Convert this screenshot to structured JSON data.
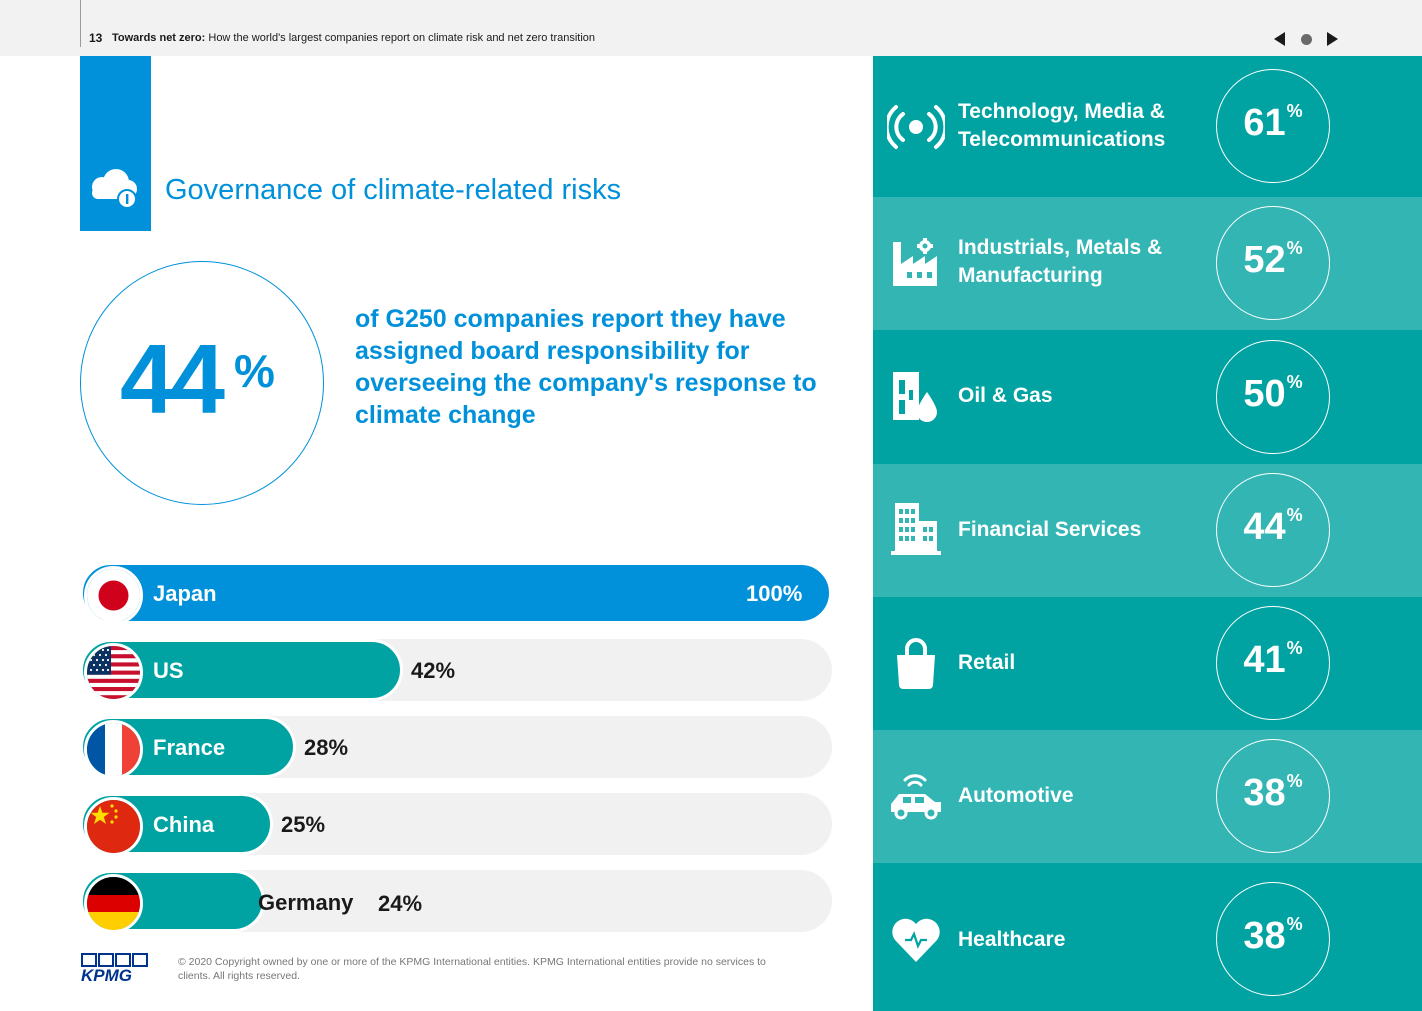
{
  "header": {
    "page_number": "13",
    "title_bold": "Towards net zero:",
    "title_rest": "How the world's largest companies report on climate risk and net zero transition"
  },
  "nav": {
    "prev": "previous-page-icon",
    "dot": "home-dot-icon",
    "next": "next-page-icon"
  },
  "section": {
    "title": "Governance of climate-related risks",
    "icon": "cloud-icon"
  },
  "headline": {
    "value": "44",
    "unit": "%",
    "statement": "of G250 companies report they have assigned board responsibility for overseeing the company's response to climate change"
  },
  "countries": [
    {
      "name": "Japan",
      "value_label": "100%",
      "value": 100,
      "color": "#0091da",
      "flag": "japan-flag-icon"
    },
    {
      "name": "US",
      "value_label": "42%",
      "value": 42,
      "color": "#00a3a1",
      "flag": "us-flag-icon"
    },
    {
      "name": "France",
      "value_label": "28%",
      "value": 28,
      "color": "#00a3a1",
      "flag": "france-flag-icon"
    },
    {
      "name": "China",
      "value_label": "25%",
      "value": 25,
      "color": "#00a3a1",
      "flag": "china-flag-icon"
    },
    {
      "name": "Germany",
      "value_label": "24%",
      "value": 24,
      "color": "#00a3a1",
      "flag": "germany-flag-icon"
    }
  ],
  "sectors": [
    {
      "name": "Technology, Media & Telecommunications",
      "value": "61",
      "unit": "%",
      "bg": "#00a3a1",
      "icon": "broadcast-icon"
    },
    {
      "name": "Industrials, Metals & Manufacturing",
      "value": "52",
      "unit": "%",
      "bg": "#33b5b4",
      "icon": "factory-icon"
    },
    {
      "name": "Oil & Gas",
      "value": "50",
      "unit": "%",
      "bg": "#00a3a1",
      "icon": "oil-drop-icon"
    },
    {
      "name": "Financial Services",
      "value": "44",
      "unit": "%",
      "bg": "#33b5b4",
      "icon": "building-icon"
    },
    {
      "name": "Retail",
      "value": "41",
      "unit": "%",
      "bg": "#00a3a1",
      "icon": "shopping-bag-icon"
    },
    {
      "name": "Automotive",
      "value": "38",
      "unit": "%",
      "bg": "#33b5b4",
      "icon": "connected-car-icon"
    },
    {
      "name": "Healthcare",
      "value": "38",
      "unit": "%",
      "bg": "#00a3a1",
      "icon": "heart-icon"
    }
  ],
  "footer": {
    "logo": "KPMG",
    "copyright": "© 2020 Copyright owned by one or more of the KPMG International entities. KPMG International entities provide no services to clients.  All rights reserved."
  },
  "colors": {
    "kpmg_blue": "#0091da",
    "teal": "#00a3a1",
    "teal_light": "#33b5b4",
    "track_grey": "#f1f1f1"
  }
}
